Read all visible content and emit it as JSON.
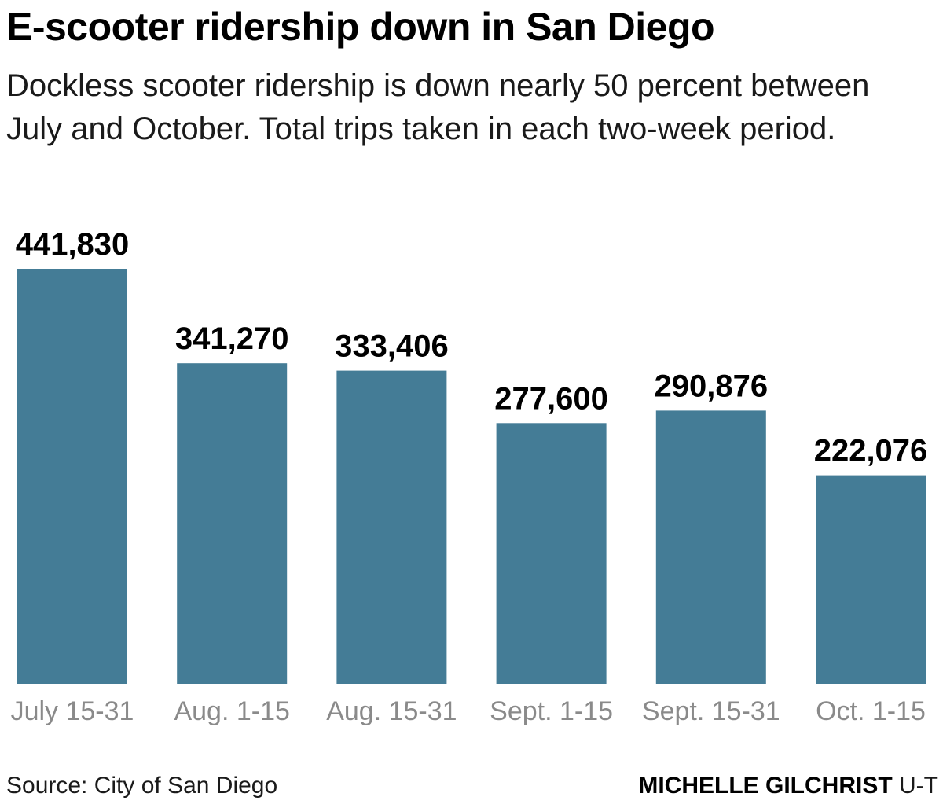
{
  "title": "E-scooter ridership down in San Diego",
  "subtitle": "Dockless scooter ridership is down nearly 50 percent between July and October. Total trips taken in each two-week period.",
  "footer": {
    "source": "Source: City of San Diego",
    "author": "MICHELLE GILCHRIST",
    "org": "U-T"
  },
  "colors": {
    "bar": "#447c96",
    "category_label": "#8a8a8a"
  },
  "chart_data": {
    "type": "bar",
    "categories": [
      "July 15-31",
      "Aug. 1-15",
      "Aug. 15-31",
      "Sept. 1-15",
      "Sept. 15-31",
      "Oct. 1-15"
    ],
    "values": [
      441830,
      341270,
      333406,
      277600,
      290876,
      222076
    ],
    "value_labels": [
      "441,830",
      "341,270",
      "333,406",
      "277,600",
      "290,876",
      "222,076"
    ],
    "title": "E-scooter ridership down in San Diego",
    "xlabel": "",
    "ylabel": "",
    "ylim": [
      0,
      441830
    ],
    "grid": false,
    "legend": "none"
  }
}
